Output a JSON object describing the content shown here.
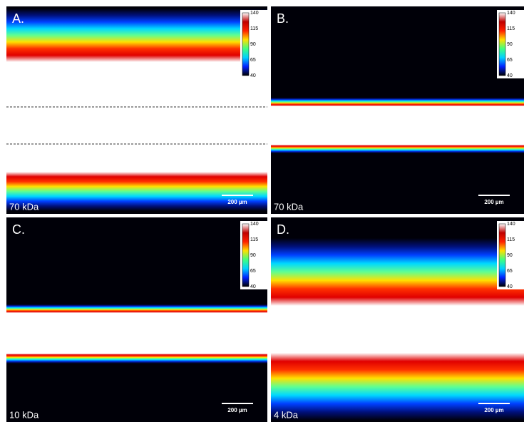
{
  "panels": [
    {
      "label": "A.",
      "caption": "70 kDa",
      "scale_bar": "200 µm",
      "colorbar": [
        "140",
        "115",
        "90",
        "65",
        "40"
      ]
    },
    {
      "label": "B.",
      "caption": "70 kDa",
      "scale_bar": "200 µm",
      "colorbar": [
        "140",
        "115",
        "90",
        "65",
        "40"
      ]
    },
    {
      "label": "C.",
      "caption": "10 kDa",
      "scale_bar": "200 µm",
      "colorbar": [
        "140",
        "115",
        "90",
        "65",
        "40"
      ]
    },
    {
      "label": "D.",
      "caption": "4 kDa",
      "scale_bar": "200 µm",
      "colorbar": [
        "140",
        "115",
        "90",
        "65",
        "40"
      ]
    }
  ]
}
